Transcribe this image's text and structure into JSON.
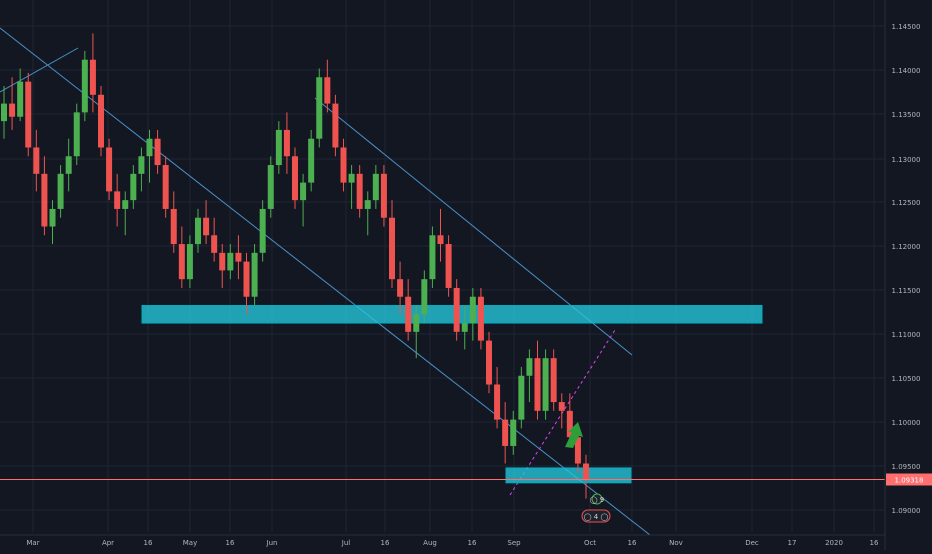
{
  "chart_data": {
    "type": "candlestick",
    "symbol_context": "EURUSD",
    "y_ticks": [
      "1.14500",
      "1.14000",
      "1.13500",
      "1.13000",
      "1.12500",
      "1.12000",
      "1.11500",
      "1.11000",
      "1.10500",
      "1.10000",
      "1.09500",
      "1.09000"
    ],
    "x_ticks": [
      "Mar",
      "Apr",
      "16",
      "May",
      "16",
      "Jun",
      "Jul",
      "16",
      "Aug",
      "16",
      "Sep",
      "Oct",
      "16",
      "Nov",
      "Dec",
      "17",
      "2020",
      "16"
    ],
    "last_price_label": "1.09318",
    "ylim": [
      1.0872,
      1.1478
    ],
    "grid": true,
    "colors": {
      "background": "#131722",
      "grid": "#1f2433",
      "up": "#4caf50",
      "down": "#ef5350",
      "trendline": "#4a90c8",
      "zone_fill": "#26c6da",
      "zone_border": "#00acc1",
      "dotted_line": "#e040fb",
      "last_price": "#ff6f6f",
      "arrow": "#2e9e3a"
    },
    "candles": [
      [
        1.134,
        1.138,
        1.132,
        1.136
      ],
      [
        1.136,
        1.139,
        1.133,
        1.1345
      ],
      [
        1.1345,
        1.14,
        1.134,
        1.1385
      ],
      [
        1.1385,
        1.1395,
        1.13,
        1.131
      ],
      [
        1.131,
        1.133,
        1.126,
        1.128
      ],
      [
        1.128,
        1.13,
        1.121,
        1.122
      ],
      [
        1.122,
        1.125,
        1.12,
        1.124
      ],
      [
        1.124,
        1.129,
        1.123,
        1.128
      ],
      [
        1.128,
        1.132,
        1.126,
        1.13
      ],
      [
        1.13,
        1.136,
        1.129,
        1.135
      ],
      [
        1.135,
        1.142,
        1.134,
        1.141
      ],
      [
        1.141,
        1.144,
        1.135,
        1.137
      ],
      [
        1.137,
        1.138,
        1.13,
        1.131
      ],
      [
        1.131,
        1.132,
        1.125,
        1.126
      ],
      [
        1.126,
        1.128,
        1.122,
        1.124
      ],
      [
        1.124,
        1.126,
        1.121,
        1.125
      ],
      [
        1.125,
        1.129,
        1.124,
        1.128
      ],
      [
        1.128,
        1.131,
        1.126,
        1.13
      ],
      [
        1.13,
        1.133,
        1.127,
        1.132
      ],
      [
        1.132,
        1.133,
        1.128,
        1.129
      ],
      [
        1.129,
        1.13,
        1.123,
        1.124
      ],
      [
        1.124,
        1.126,
        1.119,
        1.12
      ],
      [
        1.12,
        1.122,
        1.115,
        1.116
      ],
      [
        1.116,
        1.121,
        1.115,
        1.12
      ],
      [
        1.12,
        1.124,
        1.119,
        1.123
      ],
      [
        1.123,
        1.125,
        1.12,
        1.121
      ],
      [
        1.121,
        1.123,
        1.118,
        1.119
      ],
      [
        1.119,
        1.12,
        1.115,
        1.117
      ],
      [
        1.117,
        1.12,
        1.116,
        1.119
      ],
      [
        1.119,
        1.121,
        1.116,
        1.118
      ],
      [
        1.118,
        1.119,
        1.112,
        1.114
      ],
      [
        1.114,
        1.12,
        1.113,
        1.119
      ],
      [
        1.119,
        1.125,
        1.118,
        1.124
      ],
      [
        1.124,
        1.13,
        1.123,
        1.129
      ],
      [
        1.129,
        1.134,
        1.128,
        1.133
      ],
      [
        1.133,
        1.135,
        1.128,
        1.13
      ],
      [
        1.13,
        1.131,
        1.124,
        1.125
      ],
      [
        1.125,
        1.128,
        1.122,
        1.127
      ],
      [
        1.127,
        1.133,
        1.126,
        1.132
      ],
      [
        1.132,
        1.14,
        1.131,
        1.139
      ],
      [
        1.139,
        1.141,
        1.135,
        1.136
      ],
      [
        1.136,
        1.137,
        1.13,
        1.131
      ],
      [
        1.131,
        1.132,
        1.126,
        1.127
      ],
      [
        1.127,
        1.129,
        1.124,
        1.128
      ],
      [
        1.128,
        1.129,
        1.123,
        1.124
      ],
      [
        1.124,
        1.126,
        1.121,
        1.125
      ],
      [
        1.125,
        1.129,
        1.124,
        1.128
      ],
      [
        1.128,
        1.129,
        1.122,
        1.123
      ],
      [
        1.123,
        1.125,
        1.115,
        1.116
      ],
      [
        1.116,
        1.118,
        1.112,
        1.114
      ],
      [
        1.114,
        1.116,
        1.109,
        1.11
      ],
      [
        1.11,
        1.113,
        1.107,
        1.112
      ],
      [
        1.112,
        1.117,
        1.111,
        1.116
      ],
      [
        1.116,
        1.122,
        1.115,
        1.121
      ],
      [
        1.121,
        1.124,
        1.118,
        1.12
      ],
      [
        1.12,
        1.121,
        1.114,
        1.115
      ],
      [
        1.115,
        1.116,
        1.109,
        1.11
      ],
      [
        1.11,
        1.113,
        1.108,
        1.111
      ],
      [
        1.111,
        1.115,
        1.109,
        1.114
      ],
      [
        1.114,
        1.115,
        1.108,
        1.109
      ],
      [
        1.109,
        1.11,
        1.103,
        1.104
      ],
      [
        1.104,
        1.106,
        1.099,
        1.1
      ],
      [
        1.1,
        1.102,
        1.095,
        1.097
      ],
      [
        1.097,
        1.101,
        1.096,
        1.1
      ],
      [
        1.1,
        1.106,
        1.099,
        1.105
      ],
      [
        1.105,
        1.108,
        1.102,
        1.107
      ],
      [
        1.107,
        1.109,
        1.1,
        1.101
      ],
      [
        1.101,
        1.108,
        1.1,
        1.107
      ],
      [
        1.107,
        1.108,
        1.101,
        1.102
      ],
      [
        1.102,
        1.103,
        1.099,
        1.101
      ],
      [
        1.101,
        1.103,
        1.097,
        1.098
      ],
      [
        1.098,
        1.099,
        1.094,
        1.095
      ],
      [
        1.095,
        1.096,
        1.091,
        1.0932
      ]
    ]
  },
  "annotations": {
    "zone_upper": {
      "price_top": 1.113,
      "price_bottom": 1.111,
      "x_from": "16",
      "x_to": "Dec"
    },
    "zone_lower": {
      "price_top": 1.0945,
      "price_bottom": 1.0928,
      "x_from": "Sep",
      "x_to": "16"
    }
  },
  "markers": {
    "badge_top": "◯ 9",
    "badge_bottom": "◯ 4 ◯"
  }
}
